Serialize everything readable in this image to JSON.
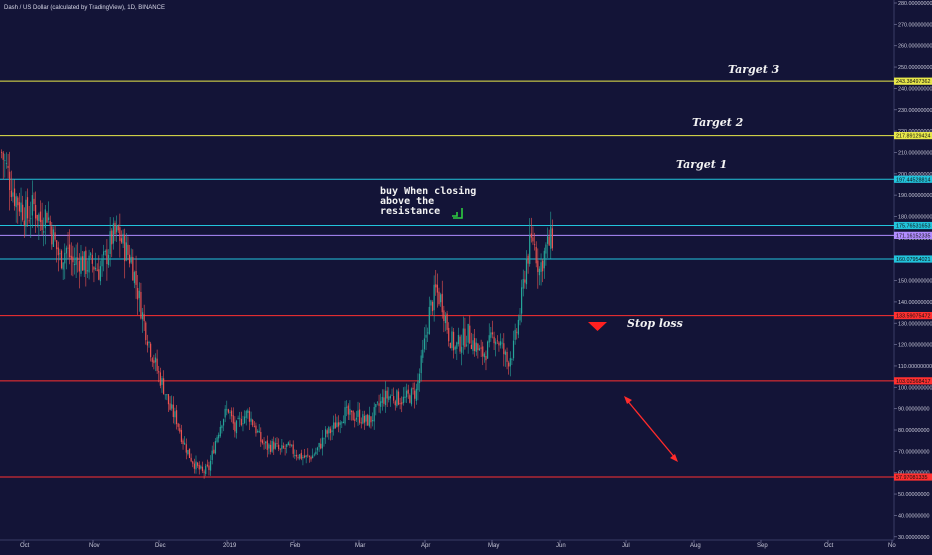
{
  "header": {
    "title": "Dash / US Dollar (calculated by TradingView), 1D, BINANCE"
  },
  "annotations": {
    "target3": "Target 3",
    "target2": "Target 2",
    "target1": "Target 1",
    "stop_loss": "Stop loss",
    "buy_note": [
      "buy When closing",
      "above the",
      "resistance"
    ]
  },
  "colors": {
    "background": "#131437",
    "target_line": "#e8e84a",
    "resistance_line": "#22c4dc",
    "stop_line": "#ff3030",
    "up_candle": "#26a69a",
    "down_candle": "#ef5350"
  },
  "chart_data": {
    "type": "candlestick",
    "title": "Dash / US Dollar (calculated by TradingView), 1D, BINANCE",
    "y_axis": {
      "ticks": [
        "280.00000000",
        "270.00000000",
        "260.00000000",
        "250.00000000",
        "240.00000000",
        "230.00000000",
        "220.00000000",
        "210.00000000",
        "200.00000000",
        "190.00000000",
        "180.00000000",
        "170.00000000",
        "160.00000000",
        "150.00000000",
        "140.00000000",
        "130.00000000",
        "120.00000000",
        "110.00000000",
        "100.00000000",
        "90.00000000",
        "80.00000000",
        "70.00000000",
        "60.00000000",
        "50.00000000",
        "40.00000000",
        "30.00000000"
      ],
      "ylim": [
        30,
        283
      ]
    },
    "x_axis": {
      "labels": [
        "Oct",
        "Nov",
        "Dec",
        "2019",
        "Feb",
        "Mar",
        "Apr",
        "May",
        "Jun",
        "Jul",
        "Aug",
        "Sep",
        "Oct",
        "No"
      ]
    },
    "horizontal_levels": [
      {
        "value": 243.38497362,
        "label": "243.38497362",
        "color": "#e8e84a"
      },
      {
        "value": 217.89129424,
        "label": "217.89129424",
        "color": "#e8e84a"
      },
      {
        "value": 197.44528814,
        "label": "197.44528814",
        "color": "#22c4dc"
      },
      {
        "value": 175.76531653,
        "label": "175.76531653",
        "color": "#22c4dc"
      },
      {
        "value": 171.16152335,
        "label": "171.16152335",
        "color": "#b08cff"
      },
      {
        "value": 160.07954021,
        "label": "160.07954021",
        "color": "#22c4dc"
      },
      {
        "value": 133.59075472,
        "label": "133.59075472",
        "color": "#ff3030"
      },
      {
        "value": 103.02568417,
        "label": "103.02568417",
        "color": "#ff3030"
      },
      {
        "value": 57.97081335,
        "label": "57.97081335",
        "color": "#ff3030"
      }
    ],
    "price_path": [
      [
        0,
        210
      ],
      [
        4,
        200
      ],
      [
        8,
        190
      ],
      [
        12,
        185
      ],
      [
        16,
        180
      ],
      [
        20,
        185
      ],
      [
        24,
        178
      ],
      [
        28,
        182
      ],
      [
        32,
        170
      ],
      [
        36,
        160
      ],
      [
        40,
        165
      ],
      [
        44,
        158
      ],
      [
        48,
        160
      ],
      [
        52,
        157
      ],
      [
        56,
        158
      ],
      [
        60,
        155
      ],
      [
        64,
        160
      ],
      [
        68,
        170
      ],
      [
        72,
        172
      ],
      [
        76,
        165
      ],
      [
        80,
        160
      ],
      [
        84,
        145
      ],
      [
        88,
        130
      ],
      [
        92,
        118
      ],
      [
        96,
        108
      ],
      [
        100,
        100
      ],
      [
        104,
        90
      ],
      [
        108,
        85
      ],
      [
        112,
        75
      ],
      [
        116,
        68
      ],
      [
        120,
        63
      ],
      [
        124,
        60
      ],
      [
        128,
        62
      ],
      [
        132,
        75
      ],
      [
        136,
        85
      ],
      [
        140,
        90
      ],
      [
        144,
        80
      ],
      [
        148,
        85
      ],
      [
        152,
        88
      ],
      [
        156,
        82
      ],
      [
        160,
        75
      ],
      [
        164,
        72
      ],
      [
        168,
        73
      ],
      [
        172,
        70
      ],
      [
        176,
        72
      ],
      [
        180,
        70
      ],
      [
        184,
        68
      ],
      [
        188,
        67
      ],
      [
        192,
        68
      ],
      [
        196,
        72
      ],
      [
        200,
        78
      ],
      [
        204,
        80
      ],
      [
        208,
        85
      ],
      [
        212,
        88
      ],
      [
        216,
        86
      ],
      [
        220,
        87
      ],
      [
        224,
        84
      ],
      [
        228,
        85
      ],
      [
        232,
        90
      ],
      [
        236,
        95
      ],
      [
        240,
        96
      ],
      [
        244,
        95
      ],
      [
        248,
        94
      ],
      [
        252,
        96
      ],
      [
        256,
        98
      ],
      [
        260,
        115
      ],
      [
        264,
        135
      ],
      [
        268,
        145
      ],
      [
        272,
        140
      ],
      [
        276,
        125
      ],
      [
        280,
        118
      ],
      [
        284,
        122
      ],
      [
        288,
        125
      ],
      [
        292,
        120
      ],
      [
        296,
        115
      ],
      [
        300,
        118
      ],
      [
        304,
        125
      ],
      [
        308,
        120
      ],
      [
        312,
        112
      ],
      [
        316,
        118
      ],
      [
        320,
        135
      ],
      [
        324,
        160
      ],
      [
        328,
        170
      ],
      [
        332,
        155
      ],
      [
        336,
        165
      ],
      [
        340,
        170
      ]
    ],
    "price_path_units": [
      "trading-day index",
      "price (USD)"
    ]
  }
}
